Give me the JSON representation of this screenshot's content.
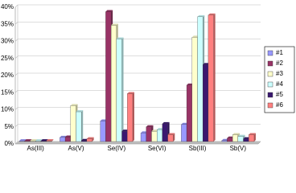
{
  "chart_data": {
    "type": "bar",
    "categories": [
      "As(III)",
      "As(V)",
      "Se(IV)",
      "Se(VI)",
      "Sb(III)",
      "Sb(V)"
    ],
    "series": [
      {
        "name": "#1",
        "color": "#9999ff",
        "values": [
          0.2,
          1.2,
          6,
          2.5,
          5,
          0.3
        ]
      },
      {
        "name": "#2",
        "color": "#993366",
        "values": [
          0.2,
          1.3,
          38,
          4.3,
          16.5,
          1
        ]
      },
      {
        "name": "#3",
        "color": "#ffffcc",
        "values": [
          0.2,
          10.5,
          34,
          3,
          30.5,
          2
        ]
      },
      {
        "name": "#4",
        "color": "#ccffff",
        "values": [
          0.2,
          8.7,
          30,
          3.5,
          36.5,
          1.5
        ]
      },
      {
        "name": "#5",
        "color": "#3a1870",
        "values": [
          0.2,
          0.3,
          3,
          5.2,
          22.5,
          0.8
        ]
      },
      {
        "name": "#6",
        "color": "#ff8080",
        "values": [
          0.2,
          0.8,
          14,
          2,
          37,
          2
        ]
      }
    ],
    "ylim": [
      0,
      40
    ],
    "yticks": [
      {
        "value": 0,
        "label": "0%"
      },
      {
        "value": 5,
        "label": "5%"
      },
      {
        "value": 10,
        "label": "10%"
      },
      {
        "value": 15,
        "label": "15%"
      },
      {
        "value": 20,
        "label": "20%"
      },
      {
        "value": 25,
        "label": "25%"
      },
      {
        "value": 30,
        "label": "30%"
      },
      {
        "value": 35,
        "label": "35%"
      },
      {
        "value": 40,
        "label": "40%"
      }
    ],
    "grid": true,
    "legend": "right"
  }
}
